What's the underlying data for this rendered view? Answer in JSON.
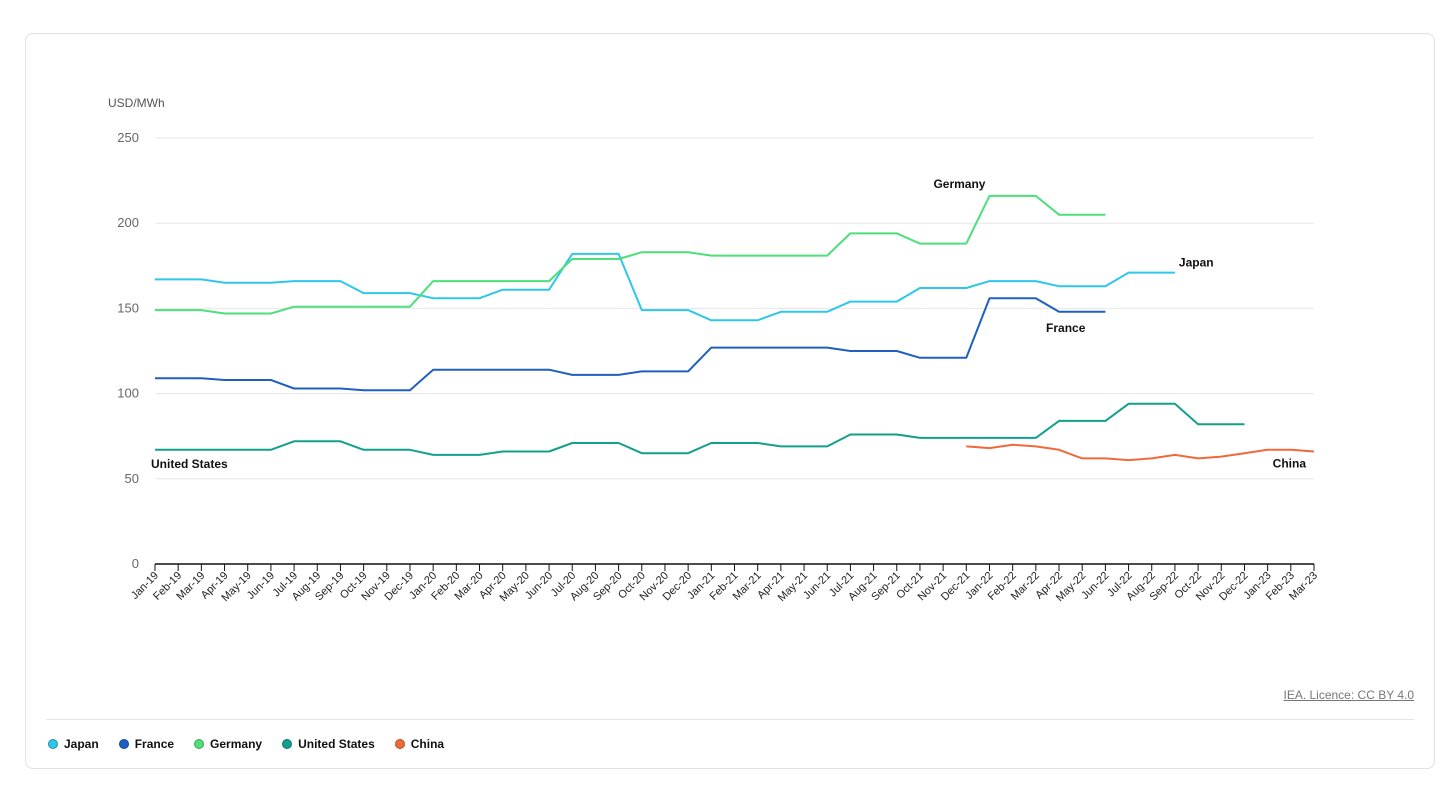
{
  "chart_data": {
    "type": "line",
    "ylabel": "USD/MWh",
    "ylim": [
      0,
      250
    ],
    "yticks": [
      0,
      50,
      100,
      150,
      200,
      250
    ],
    "grid": true,
    "legend_position": "bottom-left",
    "x": [
      "Jan-19",
      "Feb-19",
      "Mar-19",
      "Apr-19",
      "May-19",
      "Jun-19",
      "Jul-19",
      "Aug-19",
      "Sep-19",
      "Oct-19",
      "Nov-19",
      "Dec-19",
      "Jan-20",
      "Feb-20",
      "Mar-20",
      "Apr-20",
      "May-20",
      "Jun-20",
      "Jul-20",
      "Aug-20",
      "Sep-20",
      "Oct-20",
      "Nov-20",
      "Dec-20",
      "Jan-21",
      "Feb-21",
      "Mar-21",
      "Apr-21",
      "May-21",
      "Jun-21",
      "Jul-21",
      "Aug-21",
      "Sep-21",
      "Oct-21",
      "Nov-21",
      "Dec-21",
      "Jan-22",
      "Feb-22",
      "Mar-22",
      "Apr-22",
      "May-22",
      "Jun-22",
      "Jul-22",
      "Aug-22",
      "Sep-22",
      "Oct-22",
      "Nov-22",
      "Dec-22",
      "Jan-23",
      "Feb-23",
      "Mar-23"
    ],
    "series": [
      {
        "name": "Japan",
        "color": "#2ec7ea",
        "label": "Japan",
        "values": [
          167,
          167,
          167,
          165,
          165,
          165,
          166,
          166,
          166,
          159,
          159,
          159,
          156,
          156,
          156,
          161,
          161,
          161,
          182,
          182,
          182,
          149,
          149,
          149,
          143,
          143,
          143,
          148,
          148,
          148,
          154,
          154,
          154,
          162,
          162,
          162,
          166,
          166,
          166,
          163,
          163,
          163,
          171,
          171,
          171,
          null,
          null,
          null,
          null,
          null,
          null
        ]
      },
      {
        "name": "France",
        "color": "#1f5fbf",
        "label": "France",
        "values": [
          109,
          109,
          109,
          108,
          108,
          108,
          103,
          103,
          103,
          102,
          102,
          102,
          114,
          114,
          114,
          114,
          114,
          114,
          111,
          111,
          111,
          113,
          113,
          113,
          127,
          127,
          127,
          127,
          127,
          127,
          125,
          125,
          125,
          121,
          121,
          121,
          156,
          156,
          156,
          148,
          148,
          148,
          null,
          null,
          null,
          null,
          null,
          null,
          null,
          null,
          null
        ]
      },
      {
        "name": "Germany",
        "color": "#4ddf7a",
        "label": "Germany",
        "values": [
          149,
          149,
          149,
          147,
          147,
          147,
          151,
          151,
          151,
          151,
          151,
          151,
          166,
          166,
          166,
          166,
          166,
          166,
          179,
          179,
          179,
          183,
          183,
          183,
          181,
          181,
          181,
          181,
          181,
          181,
          194,
          194,
          194,
          188,
          188,
          188,
          216,
          216,
          216,
          205,
          205,
          205,
          null,
          null,
          null,
          null,
          null,
          null,
          null,
          null,
          null
        ]
      },
      {
        "name": "United States",
        "color": "#12a08c",
        "label": "United States",
        "values": [
          67,
          67,
          67,
          67,
          67,
          67,
          72,
          72,
          72,
          67,
          67,
          67,
          64,
          64,
          64,
          66,
          66,
          66,
          71,
          71,
          71,
          65,
          65,
          65,
          71,
          71,
          71,
          69,
          69,
          69,
          76,
          76,
          76,
          74,
          74,
          74,
          74,
          74,
          74,
          84,
          84,
          84,
          94,
          94,
          94,
          82,
          82,
          82,
          null,
          null,
          null
        ]
      },
      {
        "name": "China",
        "color": "#f0693a",
        "label": "China",
        "values": [
          null,
          null,
          null,
          null,
          null,
          null,
          null,
          null,
          null,
          null,
          null,
          null,
          null,
          null,
          null,
          null,
          null,
          null,
          null,
          null,
          null,
          null,
          null,
          null,
          null,
          null,
          null,
          null,
          null,
          null,
          null,
          null,
          null,
          null,
          null,
          69,
          68,
          70,
          69,
          67,
          62,
          62,
          61,
          62,
          64,
          62,
          63,
          65,
          67,
          67,
          66
        ]
      }
    ]
  },
  "credit": "IEA. Licence: CC BY 4.0",
  "legend": [
    {
      "label": "Japan",
      "color": "#2ec7ea"
    },
    {
      "label": "France",
      "color": "#1f5fbf"
    },
    {
      "label": "Germany",
      "color": "#4ddf7a"
    },
    {
      "label": "United States",
      "color": "#12a08c"
    },
    {
      "label": "China",
      "color": "#f0693a"
    }
  ]
}
